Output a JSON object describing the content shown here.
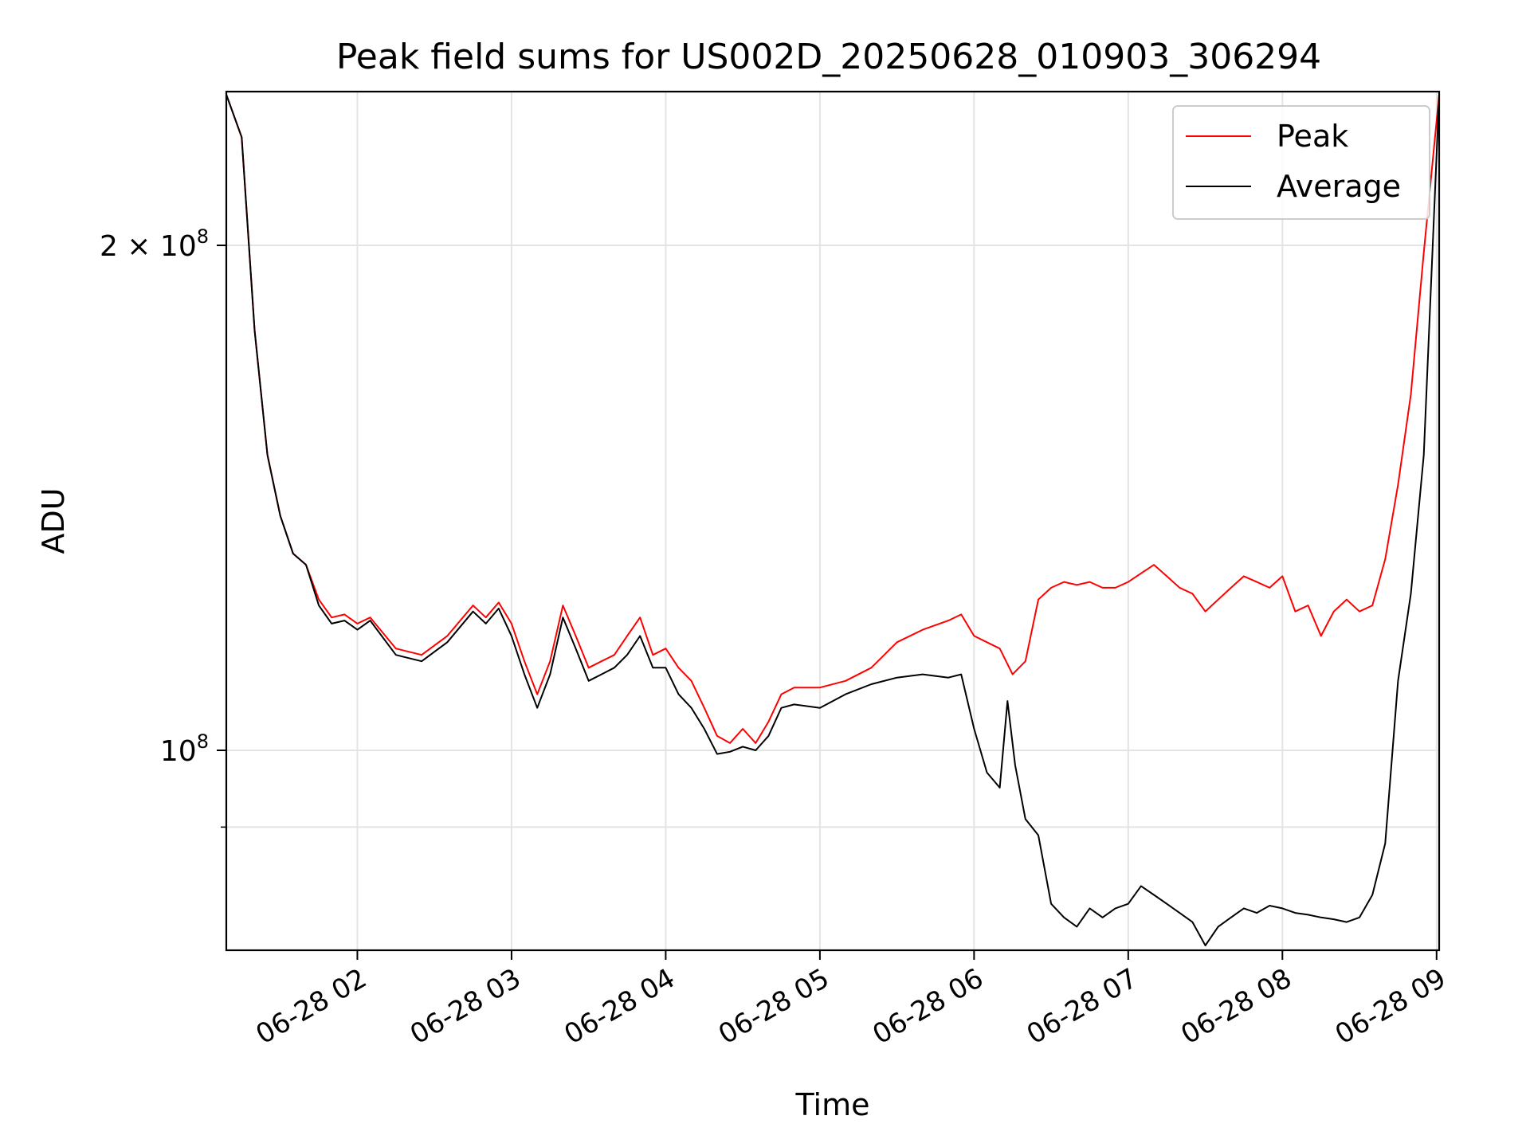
{
  "chart_data": {
    "type": "line",
    "title": "Peak field sums for US002D_20250628_010903_306294",
    "xlabel": "Time",
    "ylabel": "ADU",
    "yscale": "log",
    "grid": true,
    "legend_position": "top-right",
    "xlim": [
      "06-28 01:09",
      "06-28 09:01"
    ],
    "ylim": [
      76000000,
      247000000
    ],
    "x_ticks": [
      "06-28 02",
      "06-28 03",
      "06-28 04",
      "06-28 05",
      "06-28 06",
      "06-28 07",
      "06-28 08",
      "06-28 09"
    ],
    "y_ticks": [
      {
        "value": 200000000,
        "label": "2 × 10^8",
        "base": "2 × 10",
        "exp": "8"
      },
      {
        "value": 100000000,
        "label": "10^8",
        "base": "10",
        "exp": "8"
      }
    ],
    "y_minor_ticks": [
      90000000
    ],
    "series": [
      {
        "name": "Peak",
        "color": "#ff0000",
        "x": [
          "06-28 01:09",
          "06-28 01:15",
          "06-28 01:20",
          "06-28 01:25",
          "06-28 01:30",
          "06-28 01:35",
          "06-28 01:40",
          "06-28 01:45",
          "06-28 01:50",
          "06-28 01:55",
          "06-28 02:00",
          "06-28 02:05",
          "06-28 02:15",
          "06-28 02:25",
          "06-28 02:35",
          "06-28 02:45",
          "06-28 02:50",
          "06-28 02:55",
          "06-28 03:00",
          "06-28 03:05",
          "06-28 03:10",
          "06-28 03:15",
          "06-28 03:20",
          "06-28 03:25",
          "06-28 03:30",
          "06-28 03:35",
          "06-28 03:40",
          "06-28 03:45",
          "06-28 03:50",
          "06-28 03:55",
          "06-28 04:00",
          "06-28 04:05",
          "06-28 04:10",
          "06-28 04:15",
          "06-28 04:20",
          "06-28 04:25",
          "06-28 04:30",
          "06-28 04:35",
          "06-28 04:40",
          "06-28 04:45",
          "06-28 04:50",
          "06-28 05:00",
          "06-28 05:10",
          "06-28 05:20",
          "06-28 05:30",
          "06-28 05:40",
          "06-28 05:50",
          "06-28 05:55",
          "06-28 06:00",
          "06-28 06:05",
          "06-28 06:10",
          "06-28 06:15",
          "06-28 06:20",
          "06-28 06:25",
          "06-28 06:30",
          "06-28 06:35",
          "06-28 06:40",
          "06-28 06:45",
          "06-28 06:50",
          "06-28 06:55",
          "06-28 07:00",
          "06-28 07:05",
          "06-28 07:10",
          "06-28 07:15",
          "06-28 07:20",
          "06-28 07:25",
          "06-28 07:30",
          "06-28 07:35",
          "06-28 07:40",
          "06-28 07:45",
          "06-28 07:50",
          "06-28 07:55",
          "06-28 08:00",
          "06-28 08:05",
          "06-28 08:10",
          "06-28 08:15",
          "06-28 08:20",
          "06-28 08:25",
          "06-28 08:30",
          "06-28 08:35",
          "06-28 08:40",
          "06-28 08:45",
          "06-28 08:50",
          "06-28 08:55",
          "06-28 09:01"
        ],
        "values": [
          246000000,
          232000000,
          178000000,
          150000000,
          138000000,
          131000000,
          129000000,
          123000000,
          120000000,
          120500000,
          119000000,
          120000000,
          115000000,
          114000000,
          117000000,
          122000000,
          120000000,
          122500000,
          119000000,
          113000000,
          108000000,
          113000000,
          122000000,
          117000000,
          112000000,
          113000000,
          114000000,
          117000000,
          120000000,
          114000000,
          115000000,
          112000000,
          110000000,
          106000000,
          102000000,
          101000000,
          103000000,
          101000000,
          104000000,
          108000000,
          109000000,
          109000000,
          110000000,
          112000000,
          116000000,
          118000000,
          119500000,
          120500000,
          117000000,
          116000000,
          115000000,
          111000000,
          113000000,
          123000000,
          125000000,
          126000000,
          125500000,
          126000000,
          125000000,
          125000000,
          126000000,
          127500000,
          129000000,
          127000000,
          125000000,
          124000000,
          121000000,
          123000000,
          125000000,
          127000000,
          126000000,
          125000000,
          127000000,
          121000000,
          122000000,
          117000000,
          121000000,
          123000000,
          121000000,
          122000000,
          130000000,
          144000000,
          163000000,
          198000000,
          246000000
        ]
      },
      {
        "name": "Average",
        "color": "#000000",
        "x": [
          "06-28 01:09",
          "06-28 01:15",
          "06-28 01:20",
          "06-28 01:25",
          "06-28 01:30",
          "06-28 01:35",
          "06-28 01:40",
          "06-28 01:45",
          "06-28 01:50",
          "06-28 01:55",
          "06-28 02:00",
          "06-28 02:05",
          "06-28 02:15",
          "06-28 02:25",
          "06-28 02:35",
          "06-28 02:45",
          "06-28 02:50",
          "06-28 02:55",
          "06-28 03:00",
          "06-28 03:05",
          "06-28 03:10",
          "06-28 03:15",
          "06-28 03:20",
          "06-28 03:25",
          "06-28 03:30",
          "06-28 03:35",
          "06-28 03:40",
          "06-28 03:45",
          "06-28 03:50",
          "06-28 03:55",
          "06-28 04:00",
          "06-28 04:05",
          "06-28 04:10",
          "06-28 04:15",
          "06-28 04:20",
          "06-28 04:25",
          "06-28 04:30",
          "06-28 04:35",
          "06-28 04:40",
          "06-28 04:45",
          "06-28 04:50",
          "06-28 05:00",
          "06-28 05:10",
          "06-28 05:20",
          "06-28 05:30",
          "06-28 05:40",
          "06-28 05:50",
          "06-28 05:55",
          "06-28 06:00",
          "06-28 06:05",
          "06-28 06:10",
          "06-28 06:13",
          "06-28 06:16",
          "06-28 06:20",
          "06-28 06:25",
          "06-28 06:30",
          "06-28 06:35",
          "06-28 06:40",
          "06-28 06:45",
          "06-28 06:50",
          "06-28 06:55",
          "06-28 07:00",
          "06-28 07:05",
          "06-28 07:10",
          "06-28 07:15",
          "06-28 07:20",
          "06-28 07:25",
          "06-28 07:30",
          "06-28 07:35",
          "06-28 07:40",
          "06-28 07:45",
          "06-28 07:50",
          "06-28 07:55",
          "06-28 08:00",
          "06-28 08:05",
          "06-28 08:10",
          "06-28 08:15",
          "06-28 08:20",
          "06-28 08:25",
          "06-28 08:30",
          "06-28 08:35",
          "06-28 08:40",
          "06-28 08:45",
          "06-28 08:50",
          "06-28 08:55",
          "06-28 09:01"
        ],
        "values": [
          246000000,
          232000000,
          178000000,
          150000000,
          138000000,
          131000000,
          129000000,
          122000000,
          119000000,
          119500000,
          118000000,
          119500000,
          114000000,
          113000000,
          116000000,
          121000000,
          119000000,
          121500000,
          117000000,
          111000000,
          106000000,
          111000000,
          120000000,
          115000000,
          110000000,
          111000000,
          112000000,
          114000000,
          117000000,
          112000000,
          112000000,
          108000000,
          106000000,
          103000000,
          99500000,
          99800000,
          100500000,
          100000000,
          102000000,
          106000000,
          106500000,
          106000000,
          108000000,
          109500000,
          110500000,
          111000000,
          110500000,
          111000000,
          103000000,
          97000000,
          95000000,
          107000000,
          98000000,
          91000000,
          89000000,
          81000000,
          79500000,
          78500000,
          80500000,
          79500000,
          80500000,
          81000000,
          83000000,
          82000000,
          81000000,
          80000000,
          79000000,
          76500000,
          78500000,
          79500000,
          80500000,
          80000000,
          80800000,
          80500000,
          80000000,
          79800000,
          79500000,
          79300000,
          79000000,
          79500000,
          82000000,
          88000000,
          110000000,
          124000000,
          150000000,
          246000000
        ]
      }
    ]
  }
}
